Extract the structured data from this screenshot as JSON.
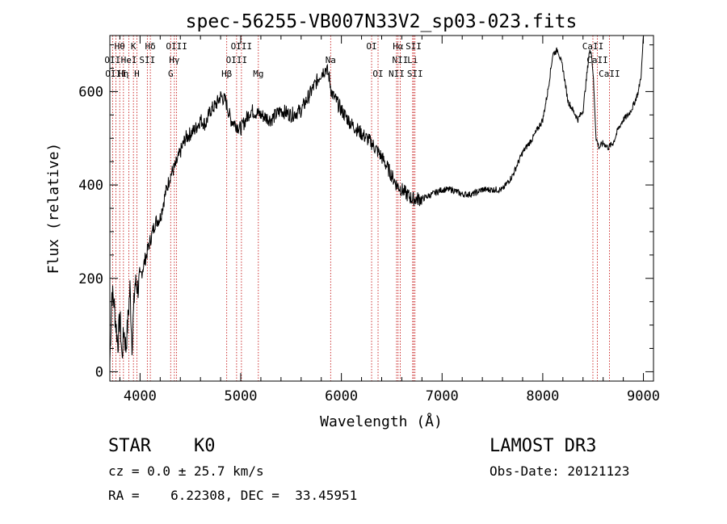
{
  "chart_data": {
    "type": "line",
    "title": "spec-56255-VB007N33V2_sp03-023.fits",
    "xlabel": "Wavelength (Å)",
    "ylabel": "Flux (relative)",
    "xlim": [
      3700,
      9100
    ],
    "ylim": [
      -20,
      720
    ],
    "x_ticks": [
      4000,
      5000,
      6000,
      7000,
      8000,
      9000
    ],
    "y_ticks": [
      0,
      200,
      400,
      600
    ],
    "grid": false,
    "series": [
      {
        "name": "spectrum",
        "x": [
          3700,
          3720,
          3740,
          3760,
          3780,
          3800,
          3820,
          3840,
          3860,
          3880,
          3900,
          3920,
          3950,
          3980,
          4000,
          4050,
          4100,
          4150,
          4200,
          4250,
          4300,
          4350,
          4400,
          4450,
          4500,
          4550,
          4600,
          4650,
          4700,
          4750,
          4800,
          4850,
          4900,
          4950,
          5000,
          5100,
          5200,
          5300,
          5400,
          5500,
          5600,
          5700,
          5750,
          5800,
          5850,
          5880,
          5900,
          5920,
          5950,
          6000,
          6100,
          6200,
          6300,
          6400,
          6500,
          6550,
          6600,
          6650,
          6700,
          6750,
          6800,
          6900,
          7000,
          7100,
          7200,
          7300,
          7400,
          7500,
          7600,
          7700,
          7800,
          7900,
          8000,
          8050,
          8100,
          8150,
          8200,
          8250,
          8300,
          8350,
          8400,
          8430,
          8460,
          8480,
          8500,
          8530,
          8560,
          8600,
          8650,
          8700,
          8750,
          8800,
          8850,
          8900,
          8950,
          8980,
          9000
        ],
        "y": [
          20,
          170,
          150,
          100,
          60,
          120,
          30,
          90,
          50,
          110,
          180,
          60,
          190,
          180,
          200,
          240,
          280,
          320,
          330,
          380,
          420,
          440,
          470,
          500,
          510,
          520,
          540,
          530,
          560,
          570,
          590,
          580,
          540,
          530,
          520,
          560,
          550,
          540,
          560,
          550,
          560,
          600,
          620,
          640,
          650,
          630,
          600,
          590,
          580,
          560,
          530,
          510,
          490,
          460,
          420,
          400,
          390,
          380,
          370,
          370,
          370,
          380,
          390,
          390,
          380,
          380,
          390,
          390,
          390,
          420,
          470,
          500,
          540,
          600,
          680,
          690,
          650,
          580,
          560,
          540,
          560,
          620,
          680,
          690,
          640,
          500,
          480,
          490,
          480,
          490,
          520,
          540,
          550,
          570,
          600,
          640,
          720
        ]
      }
    ],
    "lines_upper": [
      {
        "label": "Hθ",
        "x": 3798
      },
      {
        "label": "K",
        "x": 3934
      },
      {
        "label": "Hδ",
        "x": 4102
      },
      {
        "label": "OIII",
        "x": 4363
      },
      {
        "label": "OIII",
        "x": 5007
      },
      {
        "label": "OI",
        "x": 6300
      },
      {
        "label": "Hα",
        "x": 6563
      },
      {
        "label": "SII",
        "x": 6717
      },
      {
        "label": "CaII",
        "x": 8498
      }
    ],
    "lines_middle": [
      {
        "label": "OII",
        "x": 3727
      },
      {
        "label": "HeI",
        "x": 3889
      },
      {
        "label": "SII",
        "x": 4072
      },
      {
        "label": "Hγ",
        "x": 4341
      },
      {
        "label": "OIII",
        "x": 4959
      },
      {
        "label": "Na",
        "x": 5893
      },
      {
        "label": "NII",
        "x": 6584
      },
      {
        "label": "Li",
        "x": 6708
      },
      {
        "label": "CaII",
        "x": 8542
      }
    ],
    "lines_lower": [
      {
        "label": "OIII",
        "x": 3760
      },
      {
        "label": "Hη",
        "x": 3835
      },
      {
        "label": "H",
        "x": 3968
      },
      {
        "label": "G",
        "x": 4304
      },
      {
        "label": "Hβ",
        "x": 4861
      },
      {
        "label": "Mg",
        "x": 5175
      },
      {
        "label": "OI",
        "x": 6364
      },
      {
        "label": "NII",
        "x": 6548
      },
      {
        "label": "SII",
        "x": 6731
      },
      {
        "label": "CaII",
        "x": 8662
      }
    ]
  },
  "info": {
    "class_label": "STAR",
    "subclass": "K0",
    "survey": "LAMOST DR3",
    "redshift": "cz = 0.0 ± 25.7 km/s",
    "obs_date": "Obs-Date: 20121123",
    "coords": "RA =    6.22308, DEC =  33.45951"
  }
}
